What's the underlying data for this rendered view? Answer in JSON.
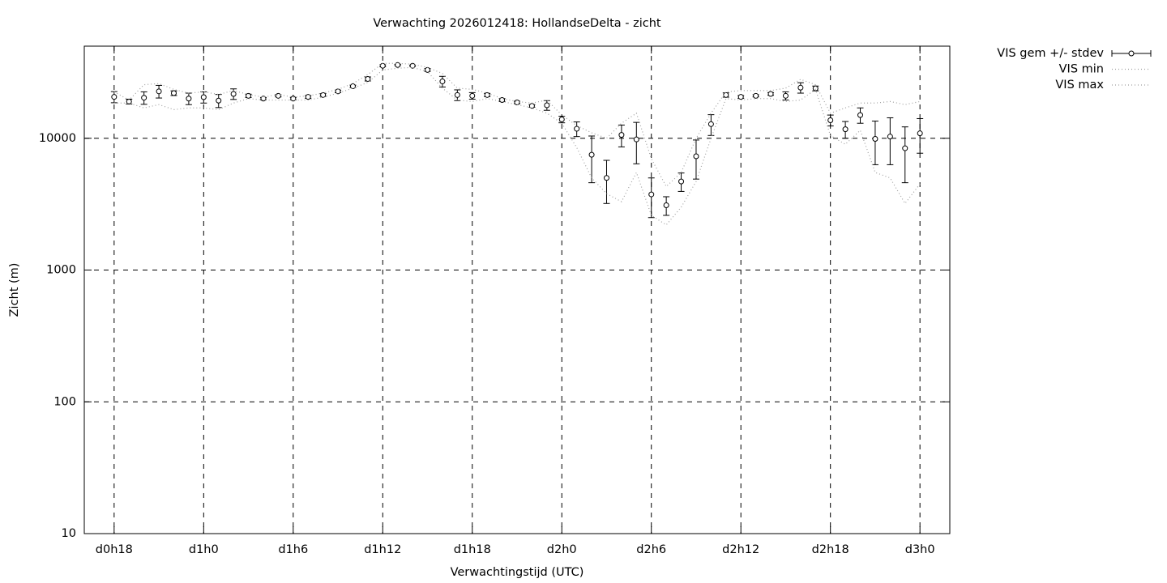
{
  "chart_data": {
    "type": "errorbar",
    "title": "Verwachting 2026012418: HollandseDelta - zicht",
    "xlabel": "Verwachtingstijd (UTC)",
    "ylabel": "Zicht (m)",
    "x": [
      18,
      19,
      20,
      21,
      22,
      23,
      24,
      25,
      26,
      27,
      28,
      29,
      30,
      31,
      32,
      33,
      34,
      35,
      36,
      37,
      38,
      39,
      40,
      41,
      42,
      43,
      44,
      45,
      46,
      47,
      48,
      49,
      50,
      51,
      52,
      53,
      54,
      55,
      56,
      57,
      58,
      59,
      60,
      61,
      62,
      63,
      64,
      65,
      66,
      67,
      68,
      69,
      70,
      71,
      72
    ],
    "series": [
      {
        "name": "VIS gem +/- stdev",
        "color": "#000000",
        "style": "errorbar",
        "values": [
          20600,
          19000,
          20300,
          22700,
          22000,
          20000,
          20500,
          19300,
          21700,
          21000,
          20000,
          21000,
          20000,
          20600,
          21300,
          22700,
          24800,
          28200,
          35500,
          36000,
          35500,
          33000,
          27000,
          21300,
          21000,
          21300,
          19500,
          18700,
          17600,
          17800,
          13900,
          11800,
          7500,
          5000,
          10600,
          9800,
          3750,
          3100,
          4700,
          7300,
          12800,
          21300,
          20600,
          21000,
          21700,
          21000,
          24200,
          23900,
          13700,
          11700,
          15000,
          9900,
          10300,
          8400,
          10900
        ],
        "errors": [
          2000,
          800,
          2200,
          2500,
          900,
          2000,
          2000,
          2200,
          2000,
          600,
          400,
          400,
          400,
          500,
          500,
          500,
          500,
          1000,
          600,
          400,
          400,
          800,
          2500,
          2000,
          1200,
          600,
          500,
          400,
          400,
          1500,
          800,
          1500,
          2900,
          1800,
          2000,
          3400,
          1250,
          500,
          750,
          2400,
          2300,
          800,
          500,
          400,
          500,
          1500,
          2200,
          1000,
          1300,
          1700,
          2000,
          3600,
          4000,
          3800,
          3200
        ]
      },
      {
        "name": "VIS min",
        "color": "#a0a0a0",
        "style": "dotted",
        "values": [
          18500,
          18500,
          17000,
          18000,
          16500,
          17000,
          17000,
          16500,
          18500,
          20000,
          19500,
          19500,
          19500,
          19500,
          20500,
          22000,
          24000,
          26500,
          33000,
          34000,
          34500,
          32000,
          24000,
          19500,
          19000,
          20000,
          19000,
          18000,
          17000,
          15500,
          13000,
          8500,
          5000,
          3800,
          3300,
          5500,
          2600,
          2200,
          3000,
          4700,
          10000,
          20000,
          19500,
          20000,
          20000,
          19000,
          19500,
          23500,
          10500,
          9000,
          11500,
          5500,
          5000,
          3200,
          4500
        ]
      },
      {
        "name": "VIS max",
        "color": "#a0a0a0",
        "style": "dotted",
        "values": [
          22500,
          19500,
          25500,
          26000,
          23500,
          22000,
          22500,
          21500,
          23000,
          21500,
          20500,
          21500,
          20500,
          21000,
          22000,
          23500,
          26000,
          30500,
          37000,
          37000,
          36500,
          34500,
          31000,
          24000,
          23500,
          22000,
          20000,
          19000,
          18500,
          19500,
          15000,
          12500,
          11000,
          10000,
          13000,
          15500,
          7000,
          4300,
          5500,
          10000,
          15500,
          22500,
          23000,
          23000,
          23000,
          24000,
          28000,
          25500,
          15500,
          17000,
          18500,
          18500,
          19000,
          18000,
          19000
        ]
      }
    ],
    "xlim": [
      16,
      74
    ],
    "xticks": [
      {
        "value": 18,
        "label": "d0h18"
      },
      {
        "value": 24,
        "label": "d1h0"
      },
      {
        "value": 30,
        "label": "d1h6"
      },
      {
        "value": 36,
        "label": "d1h12"
      },
      {
        "value": 42,
        "label": "d1h18"
      },
      {
        "value": 48,
        "label": "d2h0"
      },
      {
        "value": 54,
        "label": "d2h6"
      },
      {
        "value": 60,
        "label": "d2h12"
      },
      {
        "value": 66,
        "label": "d2h18"
      },
      {
        "value": 72,
        "label": "d3h0"
      }
    ],
    "ylim": [
      10,
      50000
    ],
    "yticks": [
      10,
      100,
      1000,
      10000
    ],
    "log_y": true,
    "grid": true,
    "legend": "outside-top-right"
  }
}
